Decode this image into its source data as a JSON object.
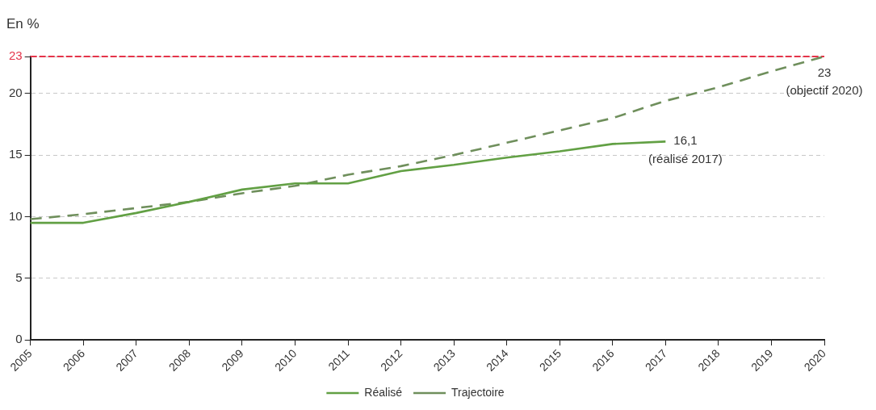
{
  "chart_data": {
    "type": "line",
    "ylabel": "En %",
    "categories": [
      "2005",
      "2006",
      "2007",
      "2008",
      "2009",
      "2010",
      "2011",
      "2012",
      "2013",
      "2014",
      "2015",
      "2016",
      "2017",
      "2018",
      "2019",
      "2020"
    ],
    "series": [
      {
        "name": "Réalisé",
        "color": "#62a044",
        "line_style": "solid",
        "values": [
          9.5,
          9.5,
          10.3,
          11.2,
          12.2,
          12.7,
          12.7,
          13.7,
          14.2,
          14.8,
          15.3,
          15.9,
          16.1,
          null,
          null,
          null
        ]
      },
      {
        "name": "Trajectoire",
        "color": "#6f8f5c",
        "line_style": "dashed",
        "values": [
          9.8,
          10.2,
          10.7,
          11.2,
          11.9,
          12.5,
          13.4,
          14.1,
          15.0,
          16.0,
          17.0,
          18.0,
          19.4,
          20.5,
          21.8,
          23
        ]
      }
    ],
    "ylim": [
      0,
      23
    ],
    "yticks": [
      0,
      5,
      10,
      15,
      20,
      23
    ],
    "grid": "y",
    "legend": "bottom",
    "marker": "none",
    "ref_lines": [
      {
        "axis": "y",
        "value": 23,
        "color": "#e5344a",
        "line_style": "dashed"
      }
    ],
    "annotations": [
      {
        "text": "16,1\n(réalisé 2017)",
        "x": "2017",
        "y": 16.1
      },
      {
        "text": "23\n(objectif 2020)",
        "x": "2020",
        "y": 23
      }
    ]
  }
}
